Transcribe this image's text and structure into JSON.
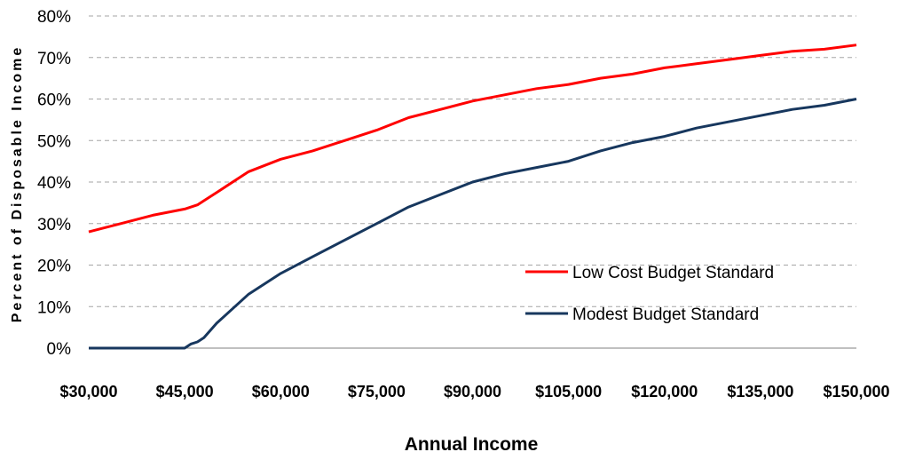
{
  "chart_data": {
    "type": "line",
    "xlabel": "Annual Income",
    "ylabel": "Percent of Disposable Income",
    "xlim": [
      30000,
      150000
    ],
    "ylim": [
      0,
      80
    ],
    "x_ticks": [
      30000,
      45000,
      60000,
      75000,
      90000,
      105000,
      120000,
      135000,
      150000
    ],
    "x_tick_labels": [
      "$30,000",
      "$45,000",
      "$60,000",
      "$75,000",
      "$90,000",
      "$105,000",
      "$120,000",
      "$135,000",
      "$150,000"
    ],
    "y_ticks": [
      0,
      10,
      20,
      30,
      40,
      50,
      60,
      70,
      80
    ],
    "y_tick_labels": [
      "0%",
      "10%",
      "20%",
      "30%",
      "40%",
      "50%",
      "60%",
      "70%",
      "80%"
    ],
    "grid": "horizontal dashed",
    "legend_position": "lower-right",
    "x": [
      30000,
      35000,
      40000,
      45000,
      46000,
      47000,
      48000,
      50000,
      55000,
      60000,
      65000,
      70000,
      75000,
      80000,
      85000,
      90000,
      95000,
      100000,
      105000,
      110000,
      115000,
      120000,
      125000,
      130000,
      135000,
      140000,
      145000,
      150000
    ],
    "series": [
      {
        "name": "Low Cost Budget Standard",
        "color": "#ff0000",
        "values": [
          28,
          30,
          32,
          33.5,
          34,
          34.5,
          35.5,
          37.5,
          42.5,
          45.5,
          47.5,
          50,
          52.5,
          55.5,
          57.5,
          59.5,
          61,
          62.5,
          63.5,
          65,
          66,
          67.5,
          68.5,
          69.5,
          70.5,
          71.5,
          72,
          73
        ]
      },
      {
        "name": "Modest Budget Standard",
        "color": "#17375e",
        "values": [
          0,
          0,
          0,
          0,
          1,
          1.5,
          2.5,
          6,
          13,
          18,
          22,
          26,
          30,
          34,
          37,
          40,
          42,
          43.5,
          45,
          47.5,
          49.5,
          51,
          53,
          54.5,
          56,
          57.5,
          58.5,
          60
        ]
      }
    ]
  }
}
